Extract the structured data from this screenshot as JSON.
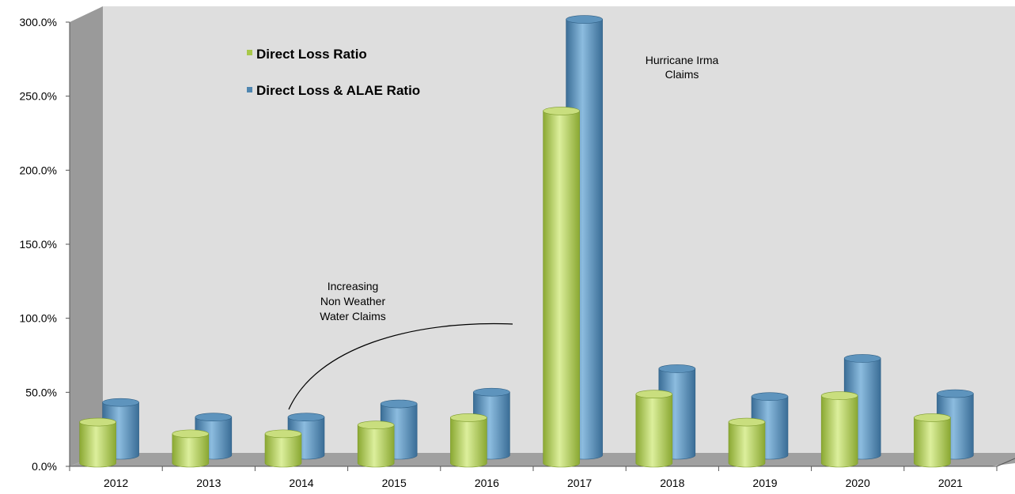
{
  "chart_data": {
    "type": "bar",
    "categories": [
      "2012",
      "2013",
      "2014",
      "2015",
      "2016",
      "2017",
      "2018",
      "2019",
      "2020",
      "2021"
    ],
    "series": [
      {
        "name": "Direct Loss Ratio",
        "color": "#a8c84a",
        "values": [
          28,
          20,
          20,
          26,
          31,
          240,
          47,
          28,
          46,
          31
        ]
      },
      {
        "name": "Direct Loss & ALAE Ratio",
        "color": "#4f86b0",
        "values": [
          36,
          26,
          26,
          35,
          43,
          297,
          59,
          40,
          66,
          42
        ]
      }
    ],
    "ylim": [
      0,
      300
    ],
    "yticks": [
      {
        "value": 0,
        "label": "0.0%"
      },
      {
        "value": 50,
        "label": "50.0%"
      },
      {
        "value": 100,
        "label": "100.0%"
      },
      {
        "value": 150,
        "label": "150.0%"
      },
      {
        "value": 200,
        "label": "200.0%"
      },
      {
        "value": 250,
        "label": "250.0%"
      },
      {
        "value": 300,
        "label": "300.0%"
      }
    ],
    "legend": {
      "position": "top-left"
    },
    "grid": false,
    "annotations": {
      "irma": [
        "Hurricane Irma",
        "Claims"
      ],
      "water": [
        "Increasing",
        "Non Weather",
        "Water Claims"
      ]
    }
  }
}
